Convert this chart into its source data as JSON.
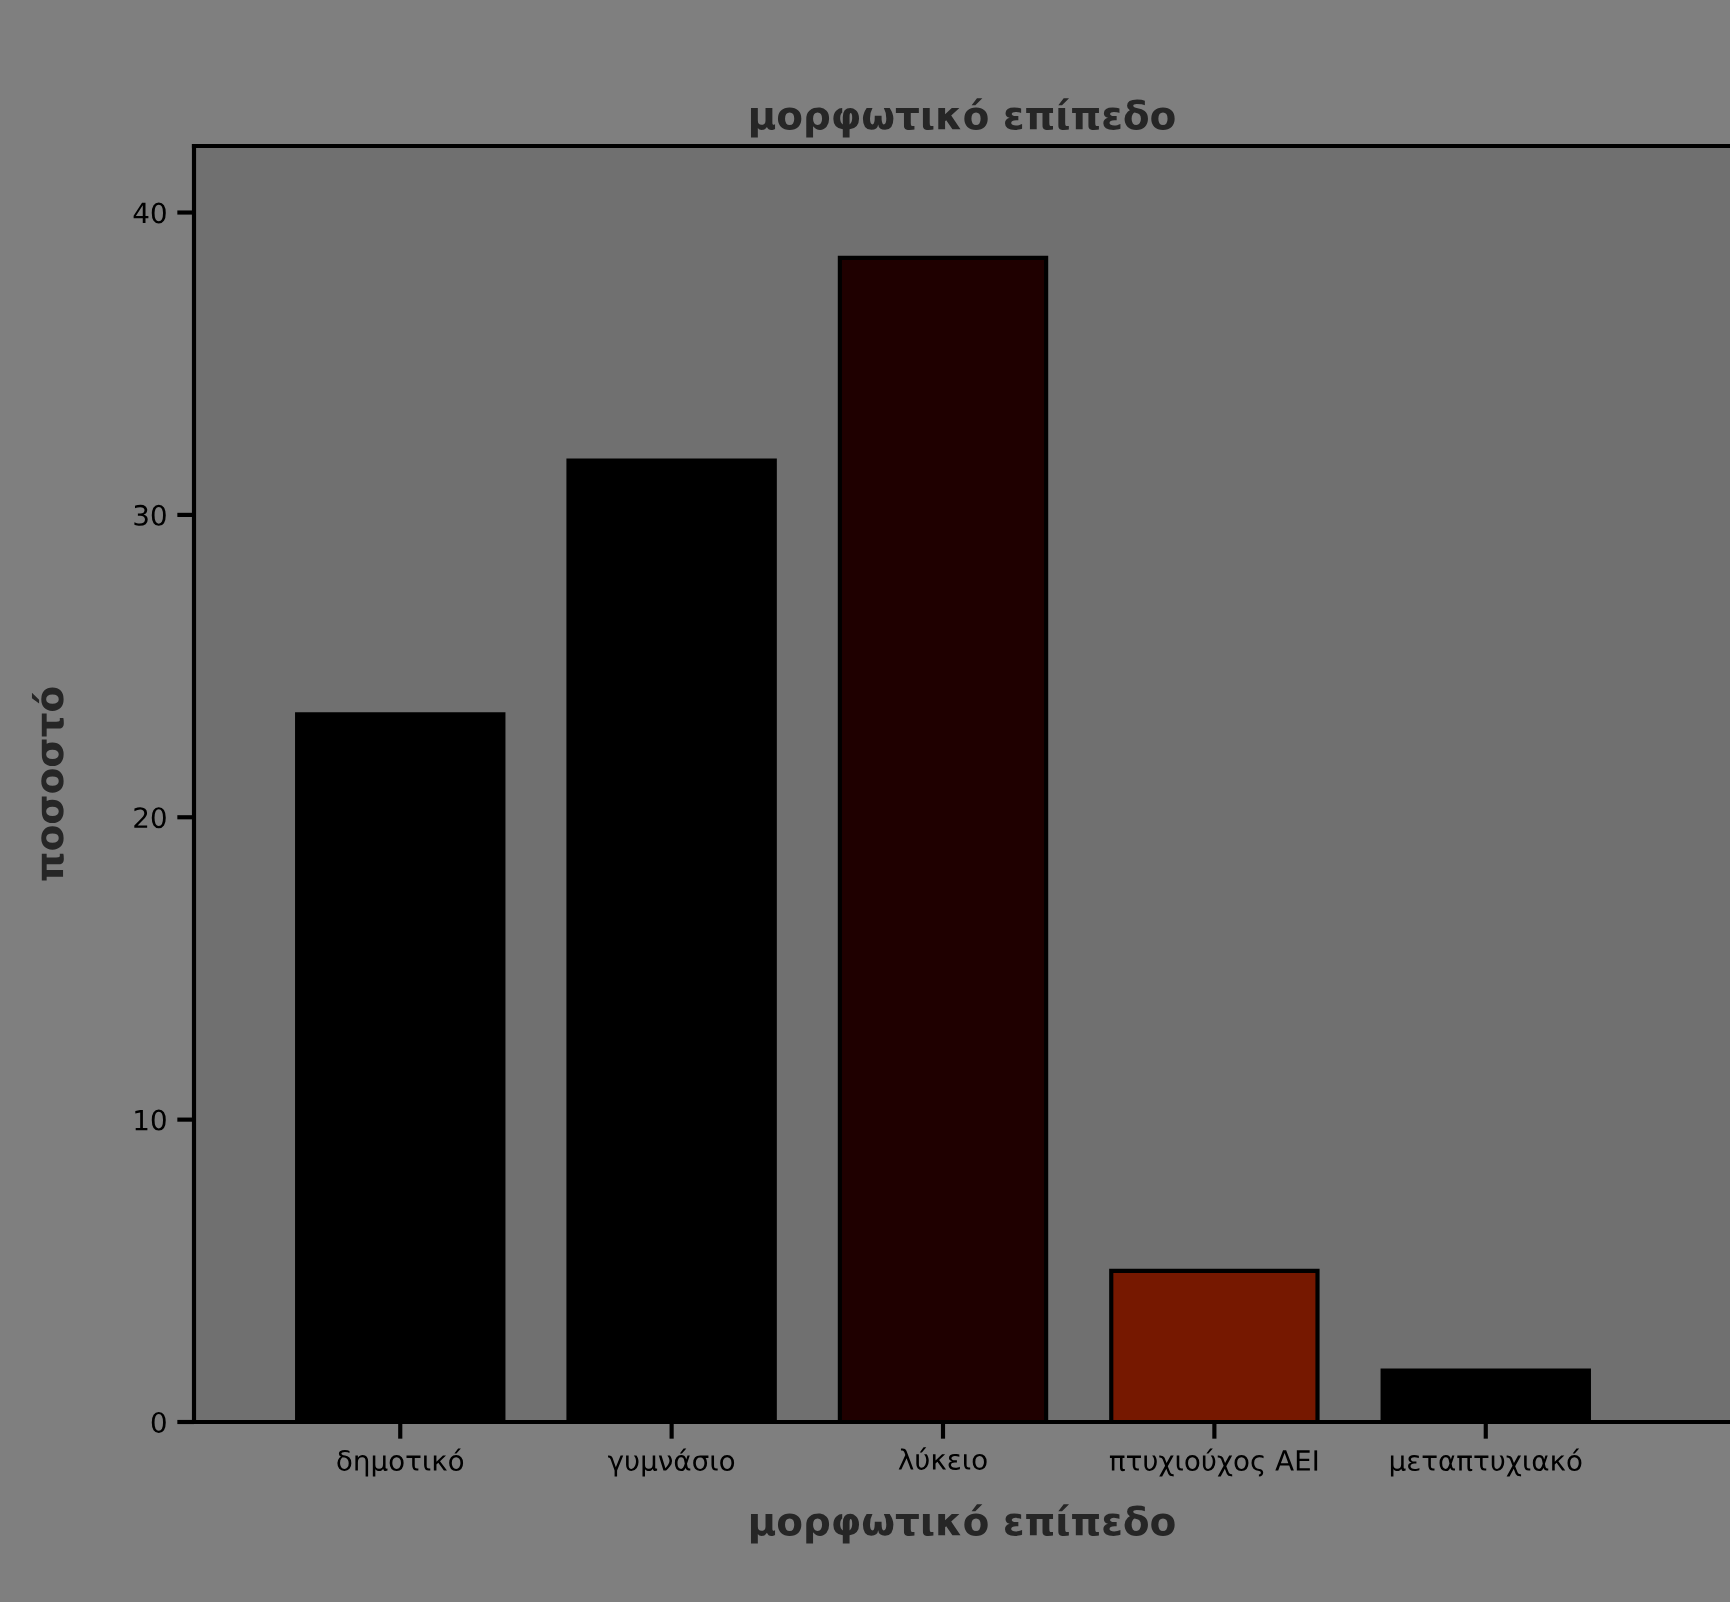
{
  "chart_data": {
    "type": "bar",
    "title": "μορφωτικό επίπεδο",
    "xlabel": "μορφωτικό επίπεδο",
    "ylabel": "ποσοστό",
    "categories": [
      "δημοτικό",
      "γυμνάσιο",
      "λύκειο",
      "πτυχιούχος ΑΕΙ",
      "μεταπτυχιακό"
    ],
    "values": [
      23.4,
      31.8,
      38.5,
      5.0,
      1.7
    ],
    "colors": [
      "#000000",
      "#000000",
      "#1f0000",
      "#761800",
      "#000000"
    ],
    "ylim": [
      0,
      42.2
    ],
    "yticks": [
      0,
      10,
      20,
      30,
      40
    ],
    "grid": false
  }
}
